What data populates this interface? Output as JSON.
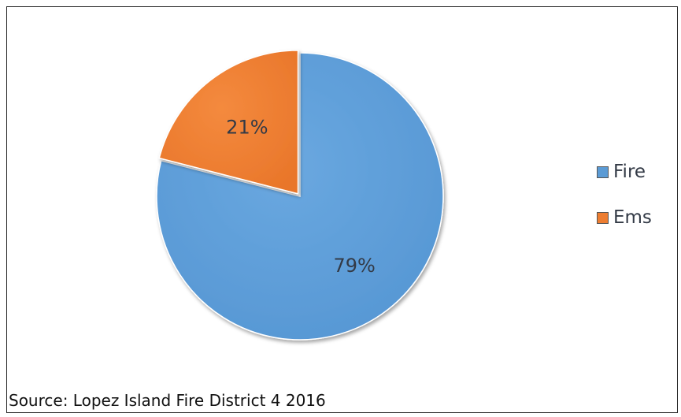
{
  "chart_data": {
    "type": "pie",
    "title": "",
    "categories": [
      "Fire",
      "Ems"
    ],
    "values": [
      79,
      21
    ],
    "data_labels": [
      "79%",
      "21%"
    ],
    "colors": [
      "#5b9bd5",
      "#ed7d31"
    ],
    "legend_position": "right",
    "exploded_slice": "Ems"
  },
  "legend": {
    "items": [
      {
        "label": "Fire",
        "color": "#5b9bd5"
      },
      {
        "label": "Ems",
        "color": "#ed7d31"
      }
    ]
  },
  "source": {
    "text": "Source: Lopez Island Fire District 4 2016"
  }
}
